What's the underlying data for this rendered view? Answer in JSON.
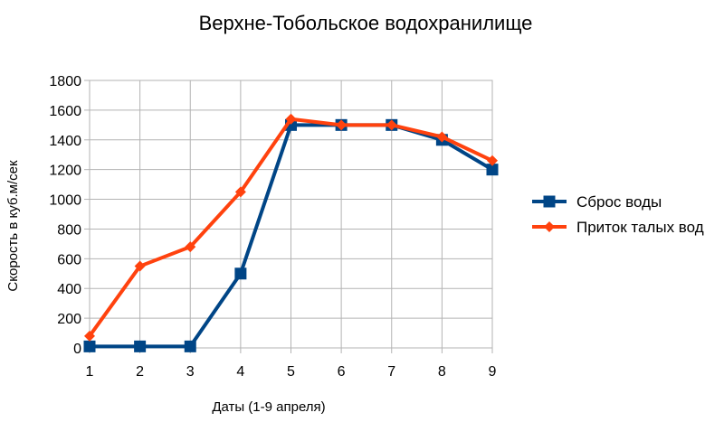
{
  "chart_data": {
    "type": "line",
    "title": "Верхне-Тобольское водохранилище",
    "xlabel": "Даты (1-9 апреля)",
    "ylabel": "Скорость в куб.м/сек",
    "x": [
      1,
      2,
      3,
      4,
      5,
      6,
      7,
      8,
      9
    ],
    "ylim": [
      0,
      1800
    ],
    "yticks": [
      0,
      200,
      400,
      600,
      800,
      1000,
      1200,
      1400,
      1600,
      1800
    ],
    "grid": true,
    "legend_position": "right",
    "series": [
      {
        "name": "Сброс воды",
        "color": "#004586",
        "marker": "square",
        "values": [
          10,
          10,
          10,
          500,
          1500,
          1500,
          1500,
          1400,
          1200
        ]
      },
      {
        "name": "Приток талых вод",
        "color": "#ff420e",
        "marker": "diamond",
        "values": [
          80,
          550,
          680,
          1050,
          1540,
          1500,
          1500,
          1420,
          1260
        ]
      }
    ]
  }
}
